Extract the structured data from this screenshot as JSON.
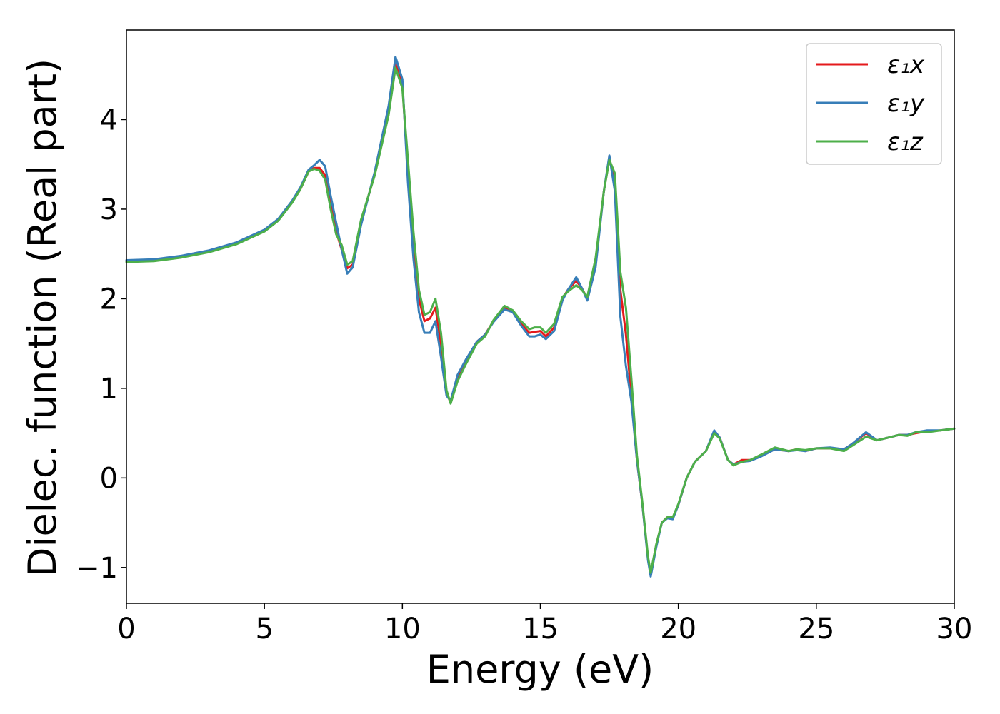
{
  "chart_data": {
    "type": "line",
    "title": "",
    "xlabel": "Energy (eV)",
    "ylabel": "Dielec. function (Real part)",
    "xlim": [
      0,
      30
    ],
    "ylim": [
      -1.4,
      5.0
    ],
    "xticks": [
      0,
      5,
      10,
      15,
      20,
      25,
      30
    ],
    "yticks": [
      -1,
      0,
      1,
      2,
      3,
      4
    ],
    "grid": false,
    "legend_position": "top-right",
    "series": [
      {
        "name": "ε₁x",
        "color": "#e41a1c",
        "x": [
          0,
          1,
          2,
          3,
          4,
          5,
          5.5,
          6,
          6.3,
          6.6,
          6.8,
          7.0,
          7.2,
          7.4,
          7.6,
          7.8,
          8.0,
          8.2,
          8.5,
          9.0,
          9.5,
          9.75,
          10.0,
          10.2,
          10.4,
          10.6,
          10.8,
          11.0,
          11.2,
          11.4,
          11.6,
          11.75,
          12.0,
          12.3,
          12.7,
          13.0,
          13.3,
          13.7,
          14.0,
          14.3,
          14.6,
          14.8,
          15.0,
          15.2,
          15.5,
          15.8,
          16.0,
          16.3,
          16.5,
          16.7,
          17.0,
          17.3,
          17.5,
          17.7,
          17.9,
          18.1,
          18.3,
          18.5,
          18.7,
          18.9,
          19.0,
          19.2,
          19.4,
          19.6,
          19.8,
          20.0,
          20.3,
          20.6,
          21.0,
          21.3,
          21.5,
          21.8,
          22.0,
          22.3,
          22.6,
          23.0,
          23.5,
          24.0,
          24.3,
          24.6,
          25.0,
          25.5,
          26.0,
          26.3,
          26.8,
          27.2,
          27.6,
          28.0,
          28.3,
          28.6,
          29.0,
          29.5,
          30.0
        ],
        "y": [
          2.42,
          2.43,
          2.47,
          2.53,
          2.62,
          2.76,
          2.88,
          3.08,
          3.22,
          3.42,
          3.46,
          3.46,
          3.38,
          3.05,
          2.75,
          2.55,
          2.34,
          2.38,
          2.85,
          3.4,
          4.1,
          4.62,
          4.4,
          3.4,
          2.6,
          2.0,
          1.75,
          1.78,
          1.9,
          1.5,
          0.95,
          0.84,
          1.12,
          1.3,
          1.52,
          1.6,
          1.75,
          1.9,
          1.85,
          1.72,
          1.62,
          1.63,
          1.64,
          1.58,
          1.68,
          2.0,
          2.1,
          2.2,
          2.12,
          2.0,
          2.4,
          3.2,
          3.57,
          3.3,
          2.1,
          1.6,
          0.9,
          0.2,
          -0.3,
          -0.9,
          -1.08,
          -0.75,
          -0.5,
          -0.44,
          -0.45,
          -0.3,
          0.0,
          0.18,
          0.3,
          0.52,
          0.45,
          0.2,
          0.15,
          0.2,
          0.2,
          0.25,
          0.32,
          0.3,
          0.32,
          0.3,
          0.33,
          0.33,
          0.32,
          0.38,
          0.5,
          0.42,
          0.45,
          0.48,
          0.48,
          0.5,
          0.52,
          0.53,
          0.55
        ]
      },
      {
        "name": "ε₁y",
        "color": "#377eb8",
        "x": [
          0,
          1,
          2,
          3,
          4,
          5,
          5.5,
          6,
          6.3,
          6.6,
          6.8,
          7.0,
          7.2,
          7.4,
          7.6,
          7.8,
          8.0,
          8.2,
          8.5,
          9.0,
          9.5,
          9.75,
          10.0,
          10.2,
          10.4,
          10.6,
          10.8,
          11.0,
          11.2,
          11.4,
          11.6,
          11.75,
          12.0,
          12.3,
          12.7,
          13.0,
          13.3,
          13.7,
          14.0,
          14.3,
          14.6,
          14.8,
          15.0,
          15.2,
          15.5,
          15.8,
          16.0,
          16.3,
          16.5,
          16.7,
          17.0,
          17.3,
          17.5,
          17.7,
          17.9,
          18.1,
          18.3,
          18.5,
          18.7,
          18.9,
          19.0,
          19.2,
          19.4,
          19.6,
          19.8,
          20.0,
          20.3,
          20.6,
          21.0,
          21.3,
          21.5,
          21.8,
          22.0,
          22.3,
          22.6,
          23.0,
          23.5,
          24.0,
          24.3,
          24.6,
          25.0,
          25.5,
          26.0,
          26.3,
          26.8,
          27.2,
          27.6,
          28.0,
          28.3,
          28.6,
          29.0,
          29.5,
          30.0
        ],
        "y": [
          2.43,
          2.44,
          2.48,
          2.54,
          2.63,
          2.77,
          2.89,
          3.09,
          3.24,
          3.44,
          3.49,
          3.55,
          3.48,
          3.15,
          2.85,
          2.55,
          2.28,
          2.35,
          2.82,
          3.42,
          4.15,
          4.7,
          4.45,
          3.3,
          2.45,
          1.85,
          1.62,
          1.62,
          1.75,
          1.35,
          0.92,
          0.86,
          1.15,
          1.32,
          1.52,
          1.6,
          1.74,
          1.88,
          1.85,
          1.7,
          1.58,
          1.58,
          1.6,
          1.55,
          1.64,
          1.98,
          2.1,
          2.24,
          2.12,
          1.98,
          2.35,
          3.2,
          3.6,
          3.2,
          1.8,
          1.25,
          0.85,
          0.2,
          -0.3,
          -0.92,
          -1.1,
          -0.77,
          -0.5,
          -0.45,
          -0.46,
          -0.3,
          0.0,
          0.18,
          0.3,
          0.53,
          0.45,
          0.2,
          0.15,
          0.18,
          0.19,
          0.24,
          0.32,
          0.3,
          0.31,
          0.3,
          0.33,
          0.34,
          0.32,
          0.38,
          0.51,
          0.42,
          0.45,
          0.48,
          0.48,
          0.51,
          0.53,
          0.53,
          0.55
        ]
      },
      {
        "name": "ε₁z",
        "color": "#4daf4a",
        "x": [
          0,
          1,
          2,
          3,
          4,
          5,
          5.5,
          6,
          6.3,
          6.6,
          6.8,
          7.0,
          7.2,
          7.4,
          7.6,
          7.8,
          8.0,
          8.2,
          8.5,
          9.0,
          9.5,
          9.75,
          10.0,
          10.2,
          10.4,
          10.6,
          10.8,
          11.0,
          11.2,
          11.4,
          11.6,
          11.75,
          12.0,
          12.3,
          12.7,
          13.0,
          13.3,
          13.7,
          14.0,
          14.3,
          14.6,
          14.8,
          15.0,
          15.2,
          15.5,
          15.8,
          16.0,
          16.3,
          16.5,
          16.7,
          17.0,
          17.3,
          17.5,
          17.7,
          17.9,
          18.1,
          18.3,
          18.5,
          18.7,
          18.9,
          19.0,
          19.2,
          19.4,
          19.6,
          19.8,
          20.0,
          20.3,
          20.6,
          21.0,
          21.3,
          21.5,
          21.8,
          22.0,
          22.3,
          22.6,
          23.0,
          23.5,
          24.0,
          24.3,
          24.6,
          25.0,
          25.5,
          26.0,
          26.3,
          26.8,
          27.2,
          27.6,
          28.0,
          28.3,
          28.6,
          29.0,
          29.5,
          30.0
        ],
        "y": [
          2.41,
          2.42,
          2.46,
          2.52,
          2.61,
          2.75,
          2.87,
          3.07,
          3.22,
          3.42,
          3.45,
          3.43,
          3.33,
          3.0,
          2.72,
          2.6,
          2.38,
          2.42,
          2.88,
          3.38,
          4.05,
          4.58,
          4.35,
          3.55,
          2.75,
          2.1,
          1.82,
          1.85,
          2.0,
          1.62,
          0.98,
          0.83,
          1.08,
          1.27,
          1.5,
          1.58,
          1.76,
          1.92,
          1.87,
          1.75,
          1.66,
          1.68,
          1.68,
          1.62,
          1.72,
          2.02,
          2.08,
          2.15,
          2.1,
          2.02,
          2.45,
          3.2,
          3.55,
          3.4,
          2.3,
          1.9,
          1.1,
          0.25,
          -0.28,
          -0.88,
          -1.06,
          -0.74,
          -0.5,
          -0.44,
          -0.44,
          -0.29,
          0.0,
          0.18,
          0.3,
          0.5,
          0.44,
          0.2,
          0.14,
          0.18,
          0.2,
          0.26,
          0.34,
          0.3,
          0.32,
          0.31,
          0.33,
          0.33,
          0.3,
          0.36,
          0.46,
          0.42,
          0.45,
          0.48,
          0.47,
          0.51,
          0.51,
          0.53,
          0.55
        ]
      }
    ]
  }
}
